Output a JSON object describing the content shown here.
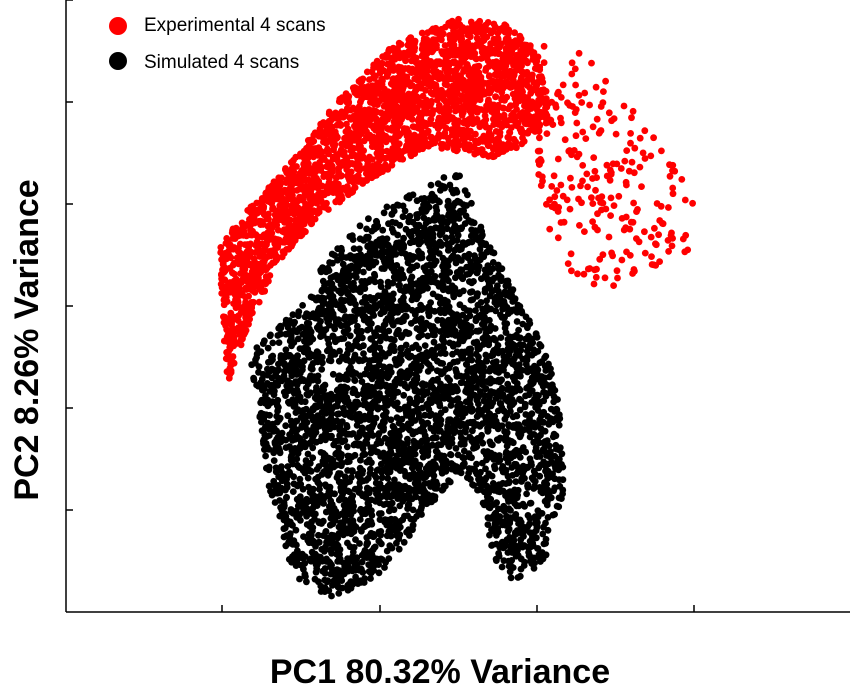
{
  "chart_data": {
    "type": "scatter",
    "title": "",
    "xlabel": "PC1 80.32% Variance",
    "ylabel": "PC2 8.26% Variance",
    "x_tick_labels": [],
    "y_tick_labels": [],
    "xlim": [
      0,
      100
    ],
    "ylim": [
      0,
      100
    ],
    "grid": false,
    "legend_position": "top-left",
    "series": [
      {
        "name": "Experimental 4 scans",
        "color": "#ff0000",
        "regions": [
          {
            "kind": "polygon",
            "count": 2600,
            "x": [
              19.5,
              22,
              27,
              35,
              42,
              50,
              56,
              60,
              62,
              56,
              46,
              38,
              32,
              27,
              23,
              20.5
            ],
            "y": [
              60,
              64,
              71,
              84,
              93,
              97,
              96,
              92,
              80,
              74,
              76,
              70,
              64,
              57,
              46,
              37
            ]
          },
          {
            "kind": "polygon",
            "count": 230,
            "x": [
              60,
              62,
              65,
              70,
              76,
              80,
              80,
              74,
              68,
              63,
              60
            ],
            "y": [
              88,
              97,
              93,
              85,
              79,
              67,
              57,
              56,
              51,
              57,
              69
            ]
          }
        ]
      },
      {
        "name": "Simulated 4 scans",
        "color": "#000000",
        "regions": [
          {
            "kind": "polygon",
            "count": 3800,
            "x": [
              23.5,
              27,
              33,
              40,
              46,
              51,
              53.5,
              55,
              58,
              61,
              63,
              63.5,
              61,
              57,
              54.5,
              53,
              50,
              45,
              40,
              34,
              29,
              26
            ],
            "y": [
              42,
              47,
              54,
              60,
              64,
              66,
              62,
              58,
              50,
              44,
              34,
              20,
              8,
              5,
              9,
              19,
              23,
              14,
              6,
              2,
              6,
              19
            ]
          },
          {
            "kind": "polygon",
            "count": 200,
            "x": [
              32,
              38,
              46,
              50,
              52,
              48,
              40,
              34
            ],
            "y": [
              56,
              64,
              70,
              72,
              66,
              62,
              58,
              50
            ]
          }
        ]
      }
    ]
  }
}
